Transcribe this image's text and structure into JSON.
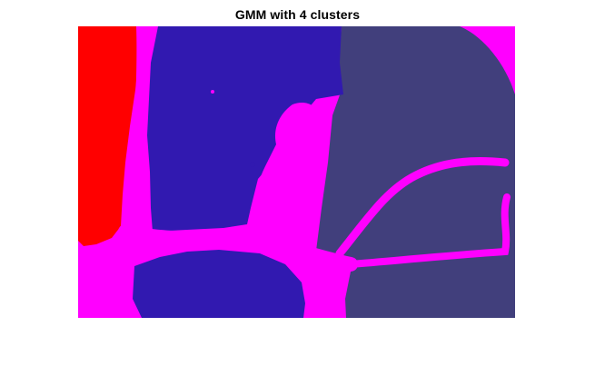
{
  "figure": {
    "title": "GMM with 4 clusters"
  },
  "segmentation": {
    "cluster_count": 4,
    "cluster_colors": {
      "red": "#ff0000",
      "blue": "#3119b0",
      "slate": "#413f7c",
      "magenta": "#ff00ff"
    }
  }
}
